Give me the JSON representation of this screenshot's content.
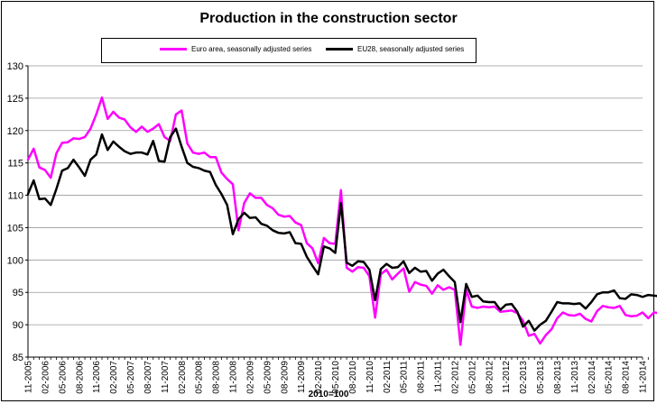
{
  "chart_data": {
    "type": "line",
    "title": "Production in the construction sector",
    "xlabel": "2010=100",
    "ylabel": "",
    "ylim": [
      85,
      130
    ],
    "yticks": [
      85,
      90,
      95,
      100,
      105,
      110,
      115,
      120,
      125,
      130
    ],
    "grid": true,
    "legend_position": "top",
    "x_tick_labels": [
      "11-2005",
      "02-2006",
      "05-2006",
      "08-2006",
      "11-2006",
      "02-2007",
      "05-2007",
      "08-2007",
      "11-2007",
      "02-2008",
      "05-2008",
      "08-2008",
      "11-2008",
      "02-2009",
      "05-2009",
      "08-2009",
      "11-2009",
      "02-2010",
      "05-2010",
      "08-2010",
      "11-2010",
      "02-2011",
      "05-2011",
      "08-2011",
      "11-2011",
      "02-2012",
      "05-2012",
      "08-2012",
      "11-2012",
      "02-2013",
      "05-2013",
      "08-2013",
      "11-2013",
      "02-2014",
      "05-2014",
      "08-2014",
      "11-2014"
    ],
    "series": [
      {
        "name": "Euro area, seasonally adjusted series",
        "color": "#ff00ff",
        "values": [
          115.5,
          117.2,
          114.3,
          113.9,
          112.7,
          116.5,
          118.1,
          118.2,
          118.8,
          118.7,
          119.0,
          120.3,
          122.5,
          125.1,
          121.8,
          122.9,
          122.0,
          121.7,
          120.5,
          119.8,
          120.6,
          119.8,
          120.3,
          121.0,
          119.0,
          118.4,
          122.5,
          123.1,
          118.0,
          116.6,
          116.4,
          116.6,
          115.9,
          115.9,
          113.5,
          112.5,
          111.7,
          104.6,
          108.8,
          110.3,
          109.6,
          109.6,
          108.5,
          108.0,
          107.0,
          106.7,
          106.8,
          105.8,
          105.4,
          102.6,
          101.8,
          99.5,
          103.4,
          102.6,
          102.5,
          110.8,
          98.8,
          98.2,
          98.9,
          98.8,
          97.5,
          91.1,
          97.8,
          98.5,
          97.0,
          97.9,
          98.7,
          95.1,
          96.6,
          96.2,
          96.0,
          94.8,
          96.1,
          95.4,
          95.8,
          95.4,
          86.9,
          95.4,
          92.8,
          92.6,
          92.8,
          92.7,
          92.8,
          92.0,
          92.1,
          92.2,
          91.8,
          90.6,
          88.3,
          88.6,
          87.1,
          88.4,
          89.3,
          91.0,
          91.9,
          91.5,
          91.4,
          91.7,
          90.9,
          90.5,
          92.1,
          92.9,
          92.7,
          92.6,
          92.9,
          91.5,
          91.3,
          91.4,
          91.9,
          91.0,
          91.9,
          91.8
        ]
      },
      {
        "name": "EU28, seasonally adjusted series",
        "color": "#000000",
        "values": [
          110.2,
          112.3,
          109.4,
          109.5,
          108.5,
          111.0,
          113.8,
          114.2,
          115.5,
          114.3,
          113.0,
          115.5,
          116.3,
          119.4,
          117.0,
          118.3,
          117.5,
          116.8,
          116.4,
          116.6,
          116.6,
          116.3,
          118.4,
          115.3,
          115.2,
          119.0,
          120.3,
          117.5,
          115.0,
          114.4,
          114.2,
          113.8,
          113.6,
          111.6,
          110.2,
          108.5,
          104.0,
          106.3,
          107.3,
          106.5,
          106.6,
          105.6,
          105.3,
          104.6,
          104.2,
          104.1,
          104.3,
          102.6,
          102.5,
          100.5,
          99.1,
          97.8,
          102.1,
          101.8,
          101.1,
          108.8,
          99.6,
          99.1,
          99.8,
          99.7,
          98.5,
          93.8,
          98.6,
          99.4,
          98.8,
          98.9,
          99.8,
          98.0,
          98.8,
          98.2,
          98.3,
          96.8,
          97.9,
          98.5,
          97.5,
          96.6,
          90.4,
          96.3,
          94.3,
          94.5,
          93.6,
          93.5,
          93.5,
          92.3,
          93.1,
          93.2,
          92.0,
          89.7,
          90.6,
          89.1,
          90.0,
          90.6,
          92.0,
          93.5,
          93.3,
          93.3,
          93.2,
          93.3,
          92.5,
          93.5,
          94.7,
          95.0,
          95.0,
          95.3,
          94.1,
          94.0,
          94.7,
          94.6,
          94.3,
          94.6,
          94.5,
          94.4
        ]
      }
    ]
  }
}
